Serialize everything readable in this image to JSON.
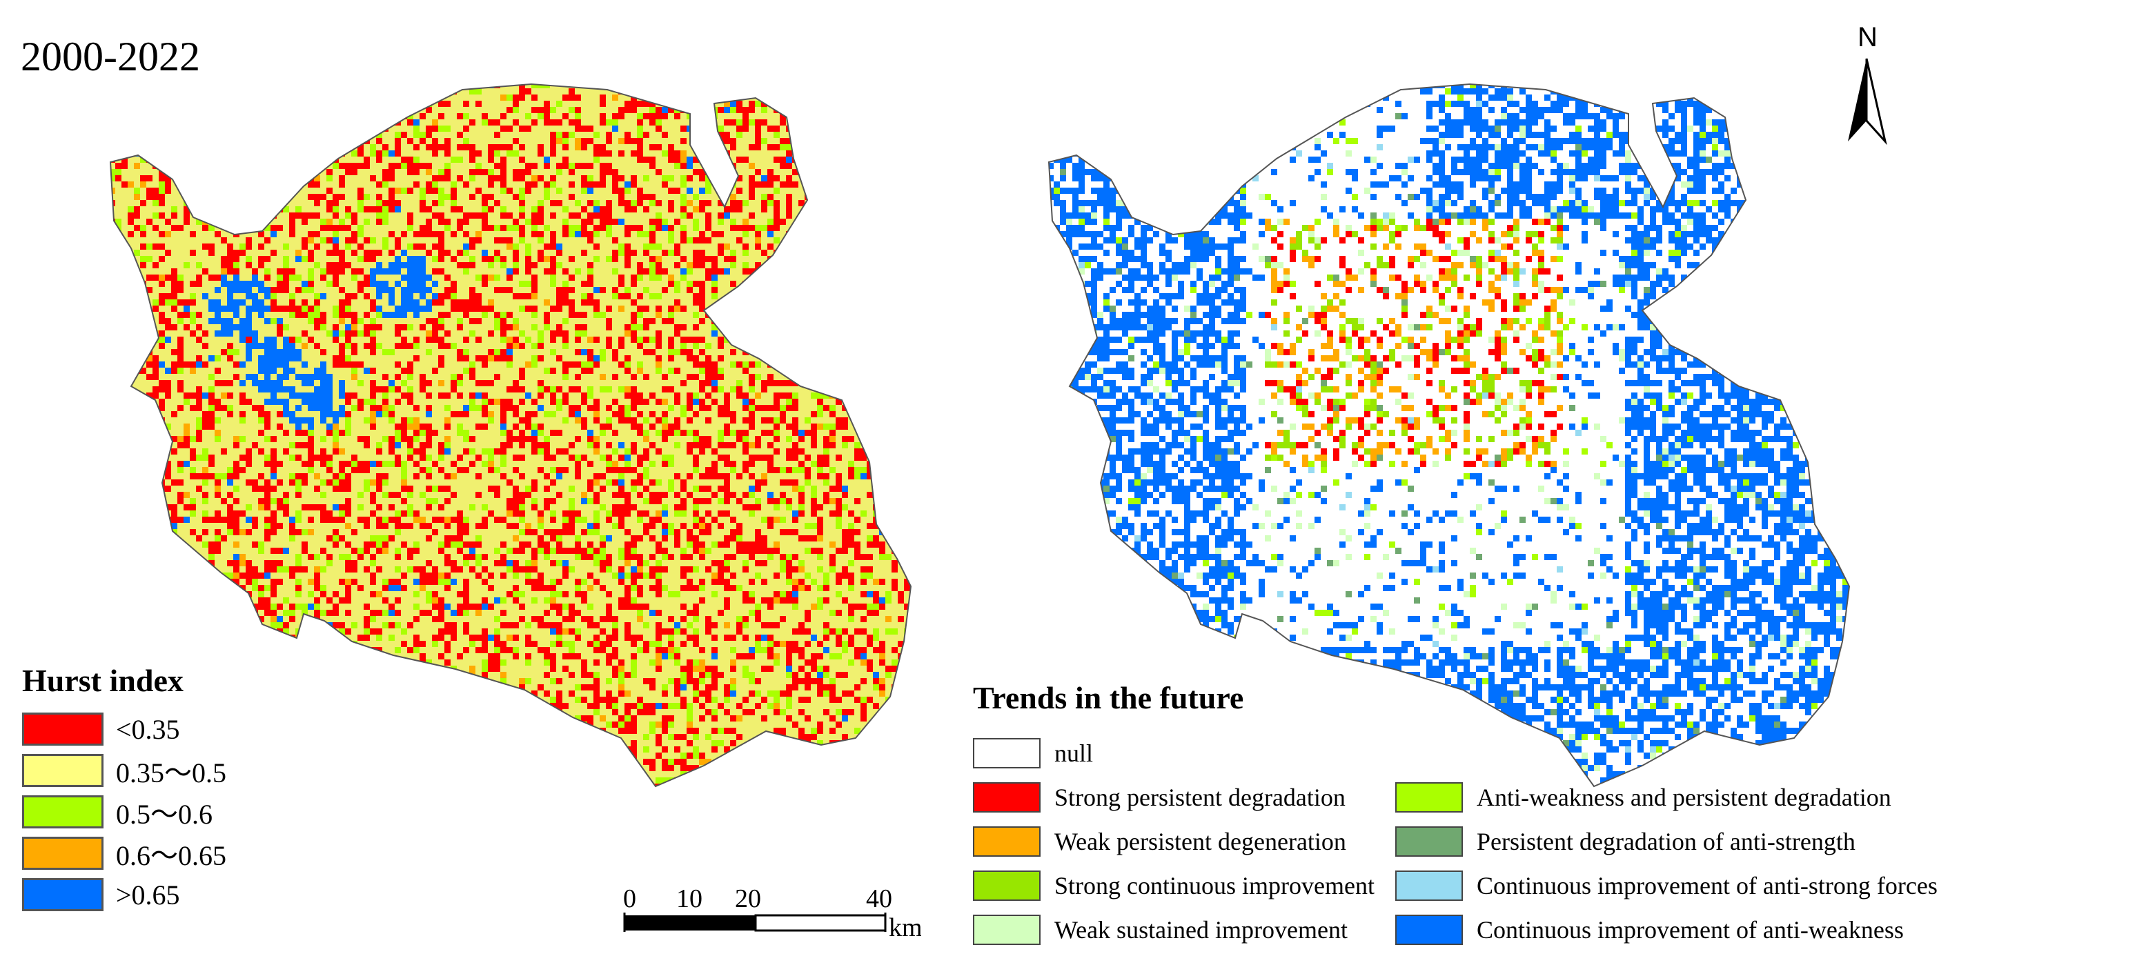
{
  "title": "2000-2022",
  "hurst_legend": {
    "title": "Hurst  index",
    "items": [
      {
        "label": "<0.35",
        "color": "#ff0000"
      },
      {
        "label": "0.35～0.5",
        "color": "#ffff80"
      },
      {
        "label": "0.5～0.6",
        "color": "#aaff00"
      },
      {
        "label": "0.6～0.65",
        "color": "#ffaa00"
      },
      {
        "label": ">0.65",
        "color": "#0070ff"
      }
    ]
  },
  "trend_legend": {
    "title": "Trends in the future",
    "column1": [
      {
        "label": "null",
        "color": "#ffffff"
      },
      {
        "label": "Strong persistent degradation",
        "color": "#ff0000"
      },
      {
        "label": "Weak persistent degeneration",
        "color": "#ffaa00"
      },
      {
        "label": "Strong continuous improvement",
        "color": "#98e600"
      },
      {
        "label": "Weak sustained improvement",
        "color": "#d3ffbe"
      }
    ],
    "column2": [
      {
        "label": "Anti-weakness and persistent degradation",
        "color": "#aaff00"
      },
      {
        "label": "Persistent degradation of anti-strength",
        "color": "#70a870"
      },
      {
        "label": "Continuous improvement of anti-strong forces",
        "color": "#97dbf2"
      },
      {
        "label": "Continuous improvement of anti-weakness",
        "color": "#0070ff"
      }
    ]
  },
  "scale_bar": {
    "ticks": [
      "0",
      "10",
      "20",
      "40"
    ],
    "unit": "km"
  },
  "north_arrow": {
    "label": "N"
  }
}
